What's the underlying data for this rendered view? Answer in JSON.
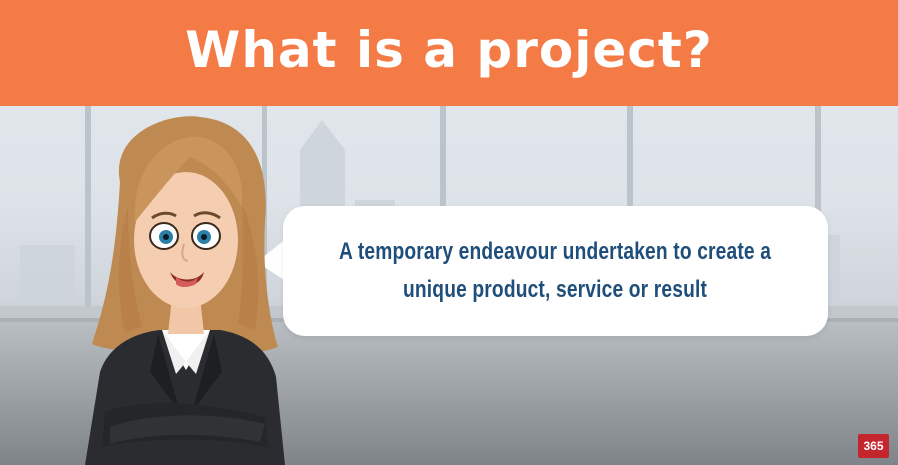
{
  "slide": {
    "title": "What is a project?",
    "definition_line1": "A temporary endeavour undertaken to create a",
    "definition_line2": "unique product, service or result",
    "logo_text": "365"
  },
  "colors": {
    "banner": "#f47b45",
    "definition_text": "#1f4e7a",
    "logo_bg": "#c4262e"
  },
  "icons": [
    "cartoon-presenter-woman",
    "office-window-backdrop"
  ]
}
